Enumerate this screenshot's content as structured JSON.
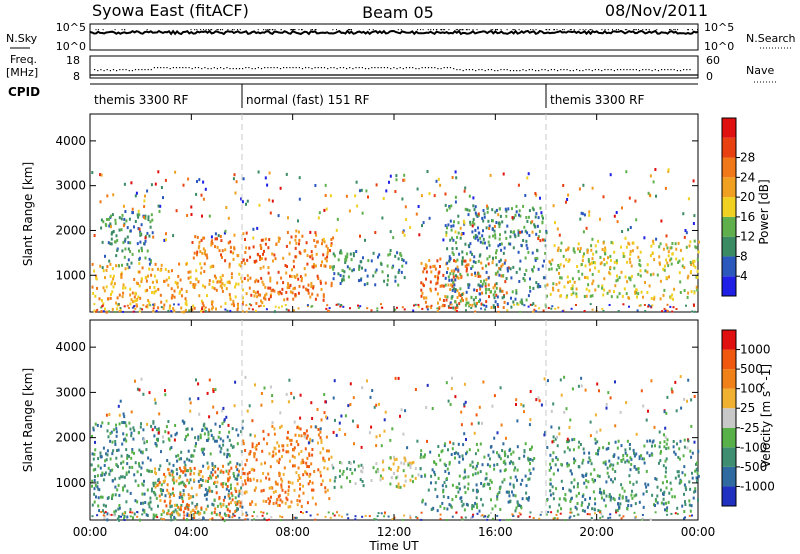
{
  "header": {
    "station": "Syowa East (fitACF)",
    "beam": "Beam 05",
    "date": "08/Nov/2011"
  },
  "top_panels": {
    "nsky_label": "N.Sky",
    "nsky_ticks": [
      "10^5",
      "10^0"
    ],
    "nsearch_label": "N.Search",
    "nsearch_ticks": [
      "10^5",
      "10^0"
    ],
    "freq_label": "Freq.",
    "freq_unit": "[MHz]",
    "freq_ticks": [
      "18",
      "8"
    ],
    "nave_label": "Nave",
    "nave_ticks": [
      "60",
      "0"
    ],
    "cpid_label": "CPID"
  },
  "cpid_segments": [
    {
      "label": "themis 3300 RF",
      "start_hour": 0,
      "end_hour": 6
    },
    {
      "label": "normal (fast) 151 RF",
      "start_hour": 6,
      "end_hour": 18
    },
    {
      "label": "themis 3300 RF",
      "start_hour": 18,
      "end_hour": 24
    }
  ],
  "axes": {
    "xlabel": "Time UT",
    "x_ticks": [
      "00:00",
      "04:00",
      "08:00",
      "12:00",
      "16:00",
      "20:00",
      "00:00"
    ],
    "x_range_hours": [
      0,
      24
    ],
    "ylabel": "Slant Range [km]",
    "y_ticks": [
      "1000",
      "2000",
      "3000",
      "4000"
    ],
    "y_range_km": [
      180,
      4600
    ]
  },
  "power_colorbar": {
    "label": "Power [dB]",
    "ticks": [
      "4",
      "8",
      "12",
      "16",
      "20",
      "24",
      "28"
    ],
    "colors": [
      "#1f1fe6",
      "#2b58bd",
      "#3a8a64",
      "#5fb04c",
      "#f0d020",
      "#f0a020",
      "#f07818",
      "#e84010",
      "#e01010"
    ]
  },
  "velocity_colorbar": {
    "label": "Velocity [m s^-1]",
    "ticks": [
      "1000",
      "500",
      "100",
      "25",
      "-25",
      "-100",
      "-500",
      "-1000"
    ],
    "colors": [
      "#2030c0",
      "#2f6aa0",
      "#3f8e72",
      "#58b048",
      "#c8c8c8",
      "#f0b030",
      "#f08018",
      "#f05810",
      "#e01010"
    ]
  },
  "chart_data": [
    {
      "type": "heatmap",
      "title": "Power",
      "xlabel": "Time UT",
      "ylabel": "Slant Range [km]",
      "x_range_hours": [
        0,
        24
      ],
      "y_range_km": [
        180,
        4600
      ],
      "colorbar_ticks_db": [
        4,
        8,
        12,
        16,
        20,
        24,
        28
      ],
      "echo_regions": [
        {
          "t0": 0.0,
          "t1": 6.0,
          "r0": 200,
          "r1": 1300,
          "level": 5
        },
        {
          "t0": 0.4,
          "t1": 2.5,
          "r0": 1200,
          "r1": 2500,
          "level": 2
        },
        {
          "t0": 4.0,
          "t1": 6.0,
          "r0": 1300,
          "r1": 1900,
          "level": 6
        },
        {
          "t0": 6.0,
          "t1": 9.5,
          "r0": 400,
          "r1": 2000,
          "level": 6
        },
        {
          "t0": 9.5,
          "t1": 12.5,
          "r0": 800,
          "r1": 1600,
          "level": 2
        },
        {
          "t0": 13.0,
          "t1": 16.5,
          "r0": 300,
          "r1": 1400,
          "level": 6
        },
        {
          "t0": 14.0,
          "t1": 18.0,
          "r0": 300,
          "r1": 2600,
          "level": 2
        },
        {
          "t0": 18.0,
          "t1": 24.0,
          "r0": 500,
          "r1": 1800,
          "level": 4
        }
      ]
    },
    {
      "type": "heatmap",
      "title": "Velocity",
      "xlabel": "Time UT",
      "ylabel": "Slant Range [km]",
      "x_range_hours": [
        0,
        24
      ],
      "y_range_km": [
        180,
        4600
      ],
      "colorbar_ticks_ms": [
        1000,
        500,
        100,
        25,
        -25,
        -100,
        -500,
        -1000
      ],
      "echo_regions": [
        {
          "t0": 0.0,
          "t1": 6.0,
          "r0": 200,
          "r1": 2400,
          "level": 2
        },
        {
          "t0": 2.5,
          "t1": 6.0,
          "r0": 300,
          "r1": 1400,
          "level": 6
        },
        {
          "t0": 6.0,
          "t1": 9.5,
          "r0": 500,
          "r1": 2300,
          "level": 6
        },
        {
          "t0": 9.5,
          "t1": 10.8,
          "r0": 900,
          "r1": 1500,
          "level": 3
        },
        {
          "t0": 11.0,
          "t1": 13.0,
          "r0": 900,
          "r1": 1600,
          "level": 4
        },
        {
          "t0": 13.0,
          "t1": 17.5,
          "r0": 400,
          "r1": 1900,
          "level": 2
        },
        {
          "t0": 18.0,
          "t1": 24.0,
          "r0": 400,
          "r1": 2000,
          "level": 2
        }
      ]
    }
  ]
}
